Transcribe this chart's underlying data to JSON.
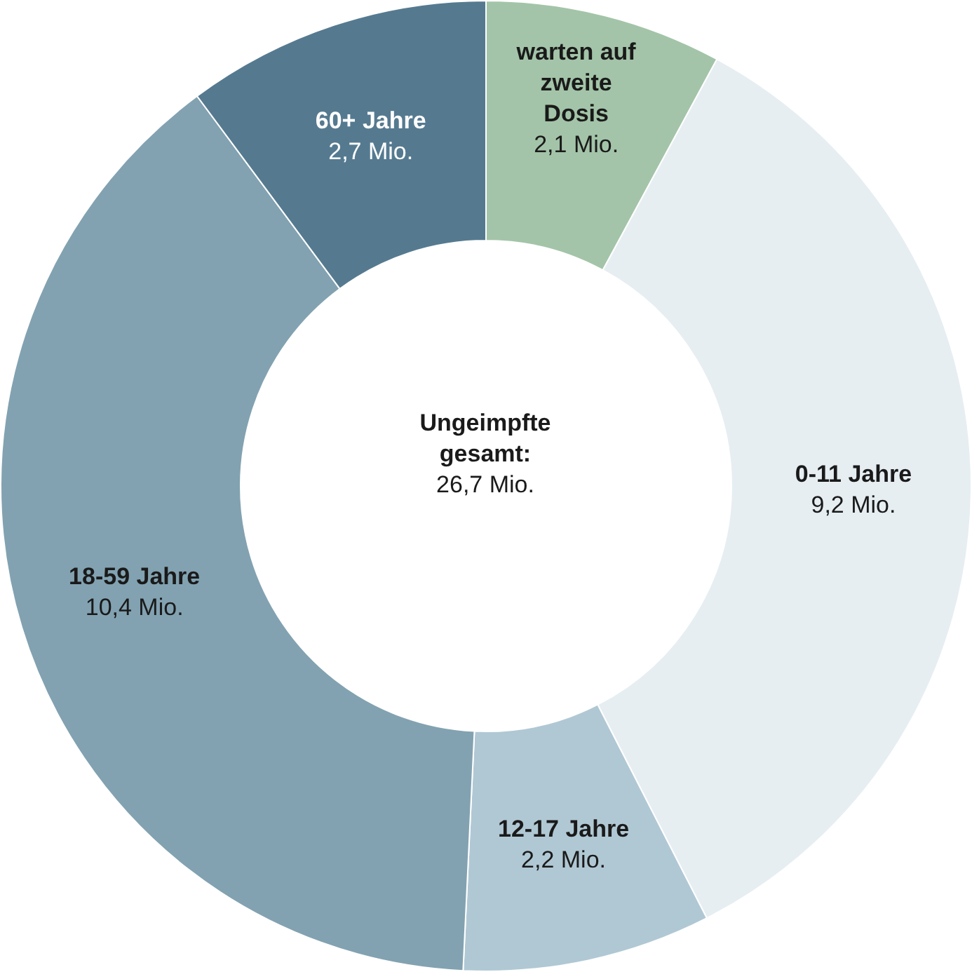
{
  "chart_data": {
    "type": "donut",
    "categories": [
      "warten auf zweite Dosis",
      "0-11 Jahre",
      "12-17 Jahre",
      "18-59 Jahre",
      "60+ Jahre"
    ],
    "values": [
      2.1,
      9.2,
      2.2,
      10.4,
      2.7
    ],
    "value_labels": [
      "2,1 Mio.",
      "9,2 Mio.",
      "2,2 Mio.",
      "10,4 Mio.",
      "2,7 Mio."
    ],
    "colors": [
      "#a3c4a8",
      "#e6eef2",
      "#b0c8d4",
      "#82a2b1",
      "#557a90"
    ],
    "annotations": [
      "Ungeimpfte gesamt:",
      "26,7 Mio."
    ]
  }
}
